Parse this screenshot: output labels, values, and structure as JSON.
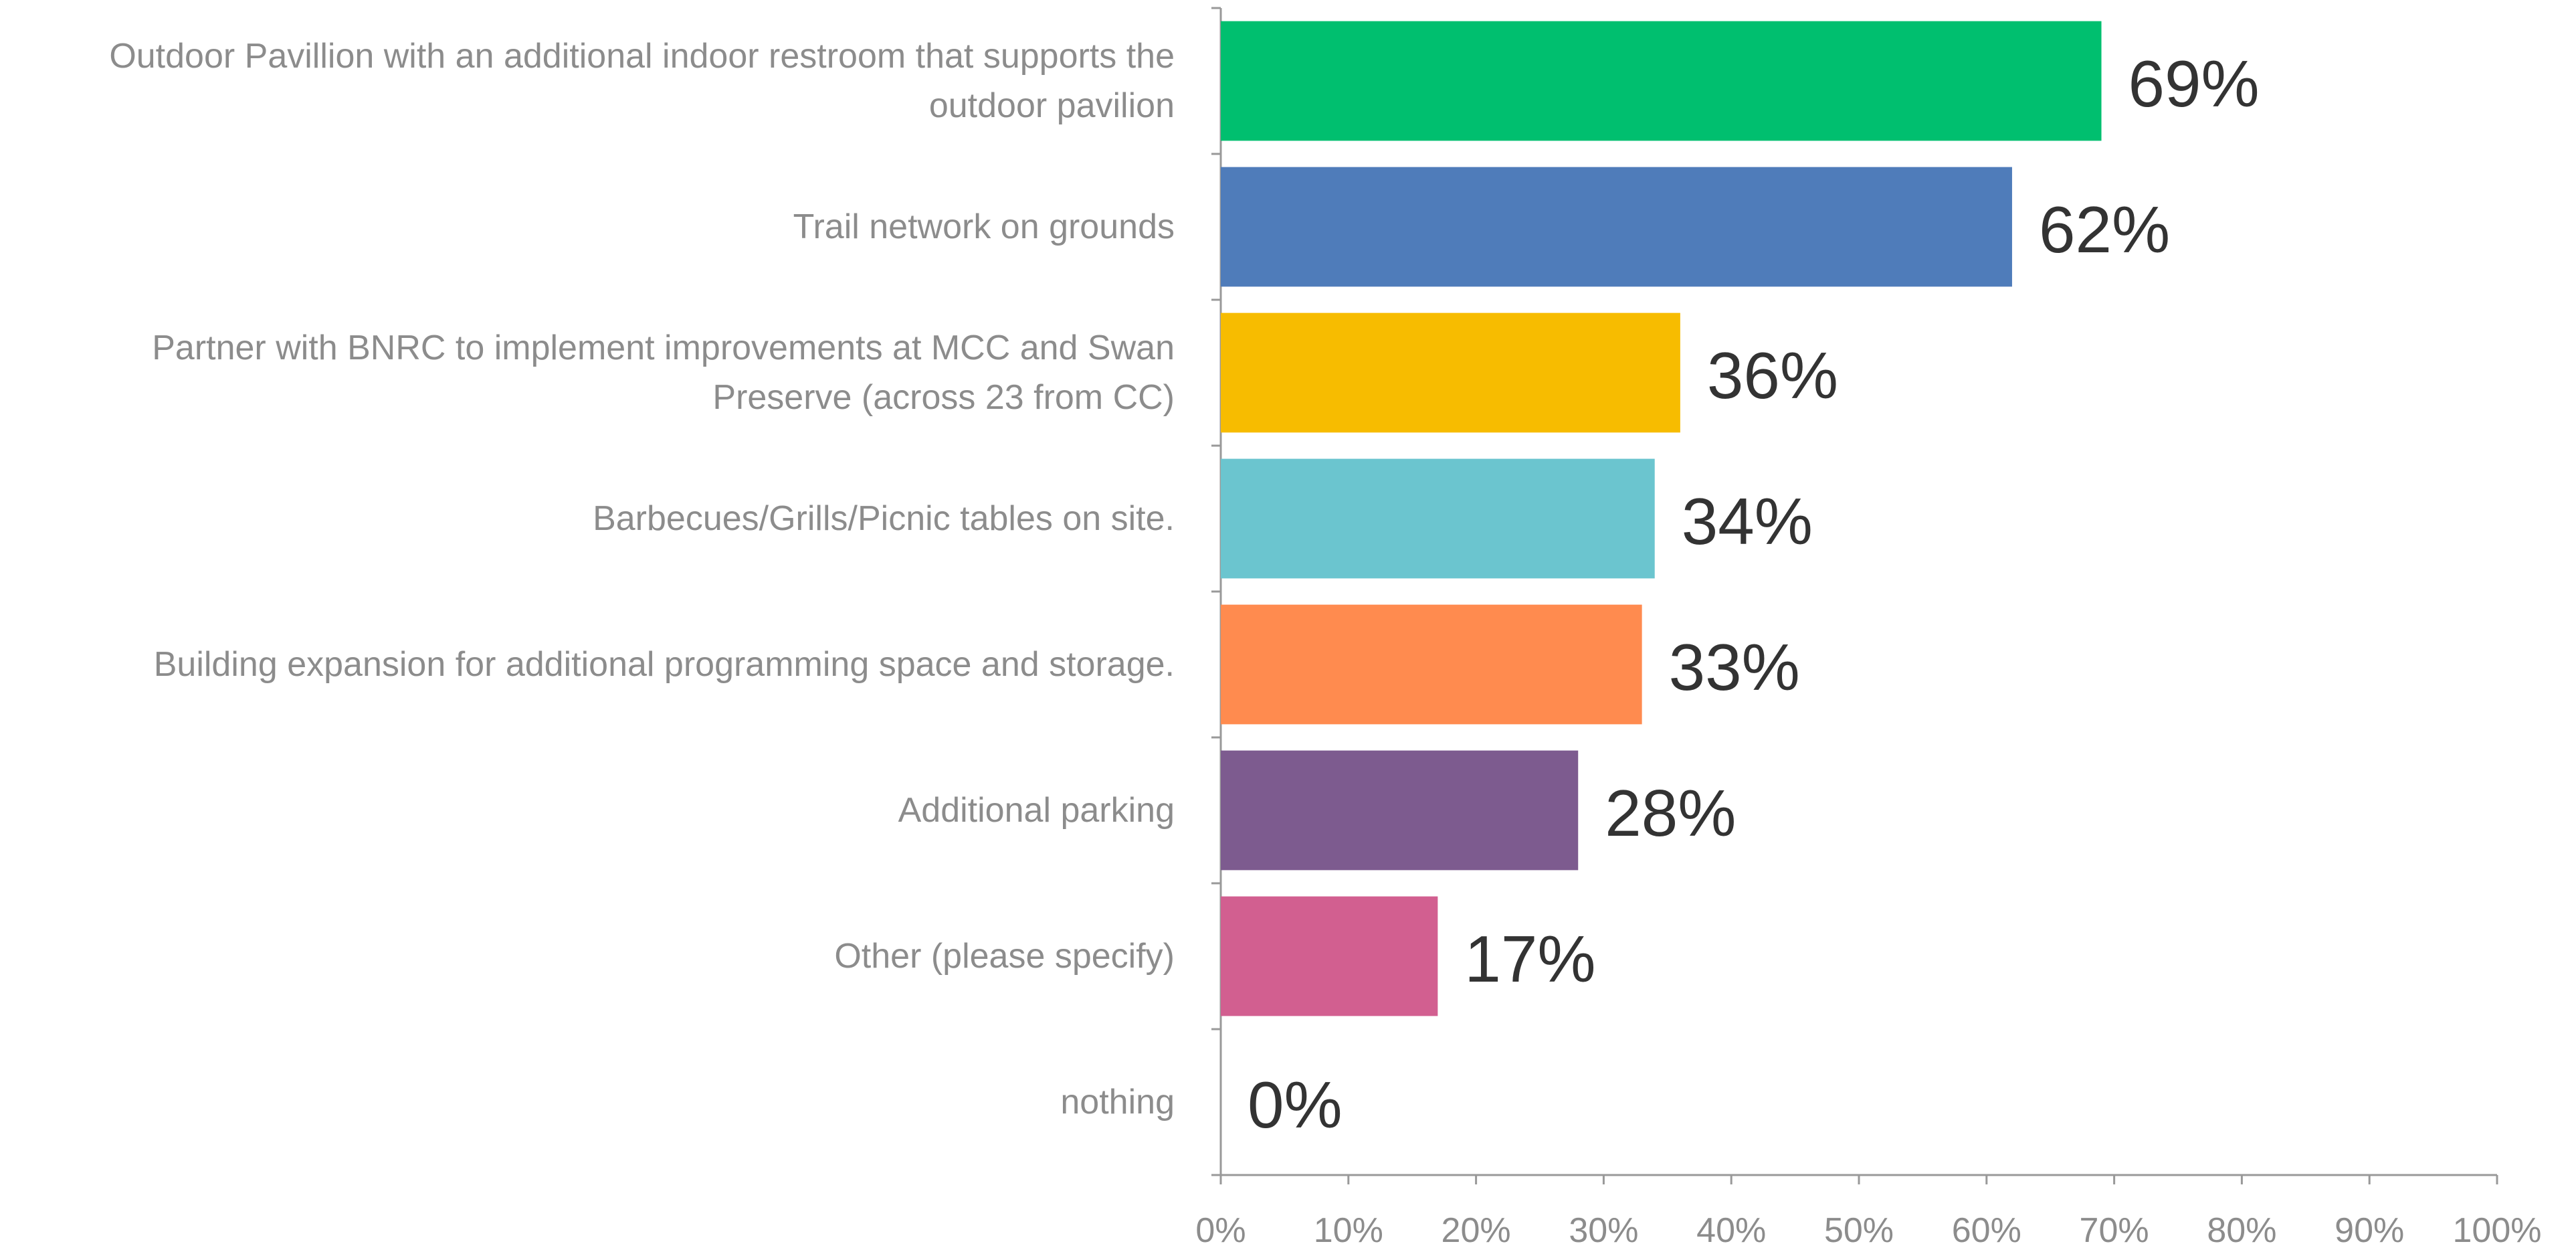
{
  "chart_data": {
    "type": "barh",
    "categories": [
      "Outdoor Pavillion with an additional indoor restroom that supports the outdoor pavilion",
      "Trail network on grounds",
      "Partner with BNRC to implement improvements at MCC and Swan Preserve (across 23 from CC)",
      "Barbecues/Grills/Picnic tables on site.",
      "Building expansion for additional programming space and storage.",
      "Additional parking",
      "Other (please specify)",
      "nothing"
    ],
    "values": [
      69,
      62,
      36,
      34,
      33,
      28,
      17,
      0
    ],
    "value_labels": [
      "69%",
      "62%",
      "36%",
      "34%",
      "33%",
      "28%",
      "17%",
      "0%"
    ],
    "colors": [
      "#00bf6f",
      "#4f7cba",
      "#f7bc00",
      "#6bc5cf",
      "#ff8b4f",
      "#7d5b8f",
      "#d25f90",
      "#999999"
    ],
    "xlim": [
      0,
      100
    ],
    "xticks": [
      {
        "value": 0,
        "label": "0%"
      },
      {
        "value": 10,
        "label": "10%"
      },
      {
        "value": 20,
        "label": "20%"
      },
      {
        "value": 30,
        "label": "30%"
      },
      {
        "value": 40,
        "label": "40%"
      },
      {
        "value": 50,
        "label": "50%"
      },
      {
        "value": 60,
        "label": "60%"
      },
      {
        "value": 70,
        "label": "70%"
      },
      {
        "value": 80,
        "label": "80%"
      },
      {
        "value": 90,
        "label": "90%"
      },
      {
        "value": 100,
        "label": "100%"
      }
    ]
  }
}
